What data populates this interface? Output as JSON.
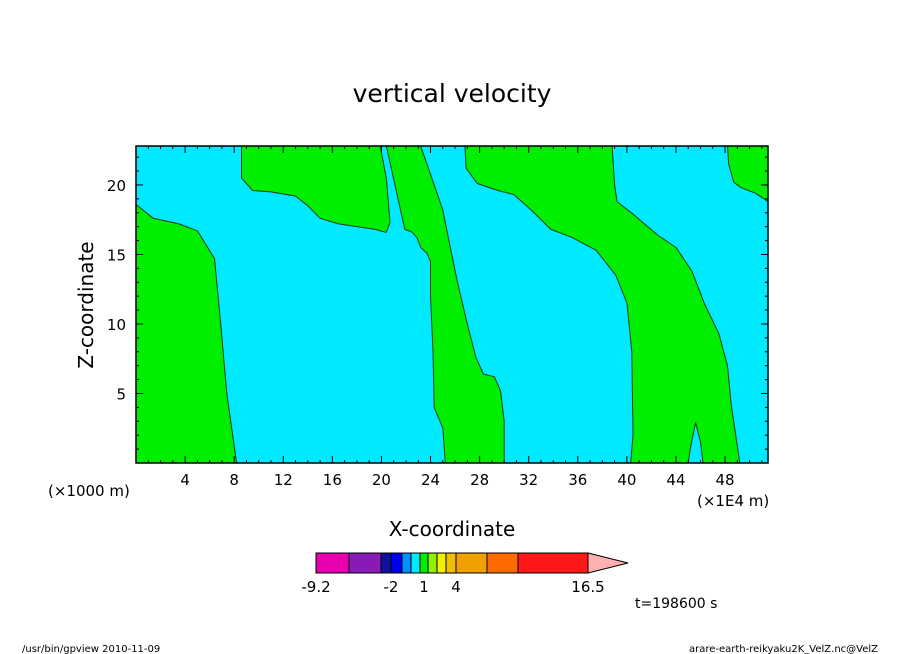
{
  "chart_data": {
    "type": "contour",
    "title": "vertical velocity",
    "xlabel": "X-coordinate",
    "ylabel": "Z-coordinate",
    "x_unit_left": "(×1000 m)",
    "x_unit_right": "(×1E4 m)",
    "xlim": [
      0,
      51.5
    ],
    "ylim": [
      0,
      22.8
    ],
    "x_ticks": [
      4,
      8,
      12,
      16,
      20,
      24,
      28,
      32,
      36,
      40,
      44,
      48
    ],
    "y_ticks": [
      5,
      10,
      15,
      20
    ],
    "field_colors": {
      "negative": "#00eaff",
      "positive": "#00ee00"
    },
    "regions": [
      {
        "sign": "positive",
        "outline": [
          [
            0,
            18.6
          ],
          [
            1.4,
            17.6
          ],
          [
            3.5,
            17.2
          ],
          [
            5,
            16.7
          ],
          [
            6.4,
            14.7
          ],
          [
            6.9,
            10
          ],
          [
            7.4,
            5
          ],
          [
            8.2,
            0
          ],
          [
            0,
            0
          ]
        ]
      },
      {
        "sign": "positive",
        "outline": [
          [
            8.6,
            22.8
          ],
          [
            8.6,
            20.5
          ],
          [
            9.5,
            19.6
          ],
          [
            11,
            19.5
          ],
          [
            13,
            19.2
          ],
          [
            14,
            18.5
          ],
          [
            15,
            17.6
          ],
          [
            16.5,
            17.2
          ],
          [
            19.5,
            16.8
          ],
          [
            20.3,
            16.6
          ],
          [
            20.4,
            16.6
          ],
          [
            20.7,
            17.3
          ],
          [
            20.4,
            20.5
          ],
          [
            19.9,
            22.8
          ]
        ]
      },
      {
        "sign": "positive",
        "outline": [
          [
            20.4,
            22.8
          ],
          [
            23.2,
            22.8
          ],
          [
            24.3,
            20
          ],
          [
            25,
            18.2
          ],
          [
            25.5,
            16
          ],
          [
            26.2,
            13
          ],
          [
            27,
            10
          ],
          [
            27.7,
            7.6
          ],
          [
            28.3,
            6.4
          ],
          [
            29.2,
            6.2
          ],
          [
            29.7,
            5.2
          ],
          [
            30,
            3
          ],
          [
            30,
            0
          ],
          [
            25.2,
            0
          ],
          [
            25,
            2.5
          ],
          [
            24.3,
            4
          ],
          [
            24.2,
            8
          ],
          [
            24,
            12
          ],
          [
            24,
            14.5
          ],
          [
            23.7,
            15.1
          ],
          [
            23.2,
            15.5
          ],
          [
            22.9,
            16.2
          ],
          [
            22.5,
            16.6
          ],
          [
            21.9,
            16.8
          ]
        ]
      },
      {
        "sign": "positive",
        "outline": [
          [
            26.8,
            22.8
          ],
          [
            38.8,
            22.8
          ],
          [
            39,
            20
          ],
          [
            39.2,
            18.8
          ],
          [
            40.5,
            17.9
          ],
          [
            42.5,
            16.4
          ],
          [
            44,
            15.5
          ],
          [
            45.3,
            13.8
          ],
          [
            46.3,
            11.5
          ],
          [
            47.5,
            9.3
          ],
          [
            48.2,
            7
          ],
          [
            48.5,
            4.2
          ],
          [
            49.2,
            0
          ],
          [
            46.2,
            0
          ],
          [
            46,
            1.5
          ],
          [
            45.6,
            2.9
          ],
          [
            45.2,
            1.2
          ],
          [
            45,
            0
          ],
          [
            40.3,
            0
          ],
          [
            40.5,
            2
          ],
          [
            40.4,
            8
          ],
          [
            40,
            11.5
          ],
          [
            39.1,
            13.5
          ],
          [
            37.5,
            15.3
          ],
          [
            35.6,
            16.2
          ],
          [
            33.8,
            16.8
          ],
          [
            32.2,
            18.2
          ],
          [
            30.8,
            19.3
          ],
          [
            29.5,
            19.6
          ],
          [
            27.8,
            20.1
          ],
          [
            26.9,
            21.2
          ]
        ]
      },
      {
        "sign": "positive",
        "outline": [
          [
            48.2,
            22.8
          ],
          [
            51.5,
            22.8
          ],
          [
            51.5,
            18.8
          ],
          [
            50.5,
            19.4
          ],
          [
            49.3,
            19.8
          ],
          [
            48.7,
            20.2
          ],
          [
            48.3,
            21.5
          ]
        ]
      }
    ],
    "colorbar": {
      "levels": [
        "-9.2",
        "-2",
        "1",
        "4",
        "16.5"
      ],
      "swatches": [
        "#e800b0",
        "#8a1ab8",
        "#1010a0",
        "#0000f0",
        "#0090ff",
        "#00eaff",
        "#00ee00",
        "#90f000",
        "#f0f000",
        "#f0c000",
        "#f0a000",
        "#ff6a00",
        "#ff1818",
        "#ff8080",
        "#ffb0b0"
      ]
    }
  },
  "annotations": {
    "time": "t=198600 s",
    "footer_left": "/usr/bin/gpview   2010-11-09",
    "footer_right": "arare-earth-reikyaku2K_VelZ.nc@VelZ"
  }
}
